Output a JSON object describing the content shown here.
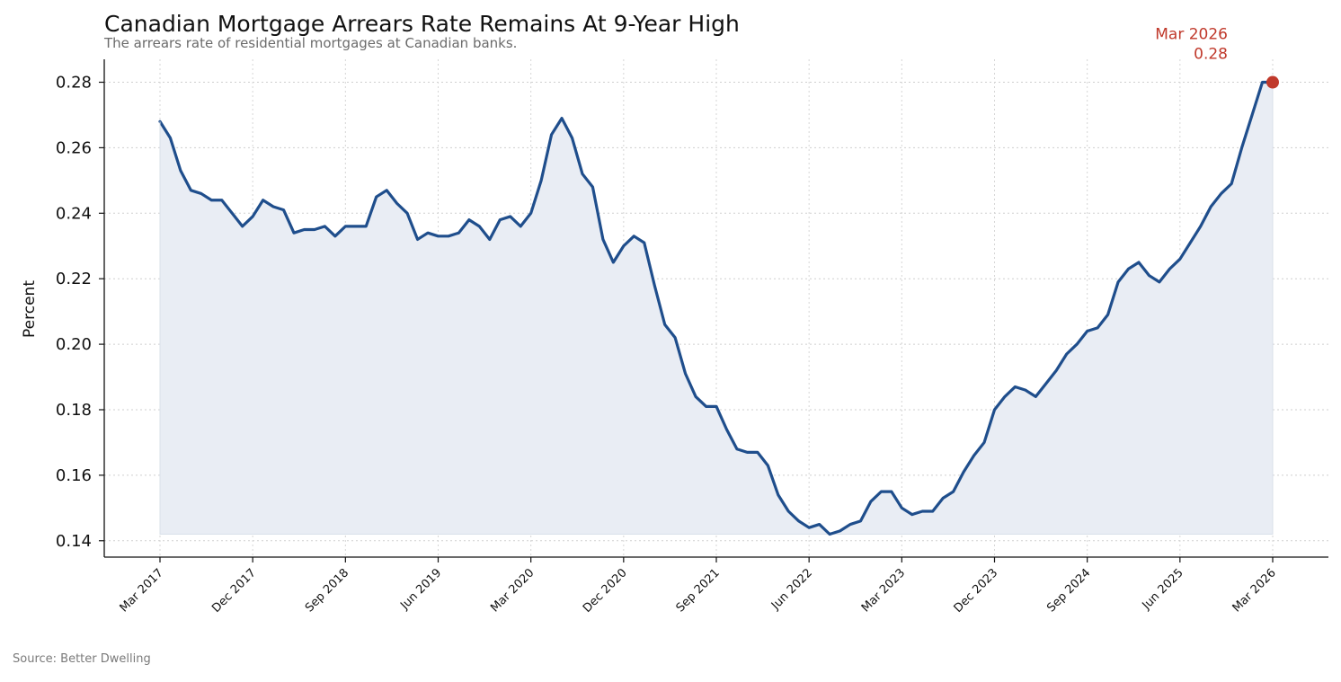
{
  "chart_data": {
    "type": "area",
    "title": "Canadian Mortgage Arrears Rate Remains At 9-Year High",
    "subtitle": "The arrears rate of residential mortgages at Canadian banks.",
    "xlabel": "",
    "ylabel": "Percent",
    "source": "Source: Better Dwelling",
    "ylim": [
      0.135,
      0.287
    ],
    "yticks": [
      0.14,
      0.16,
      0.18,
      0.2,
      0.22,
      0.24,
      0.26,
      0.28
    ],
    "ytick_labels": [
      "0.14",
      "0.16",
      "0.18",
      "0.20",
      "0.22",
      "0.24",
      "0.26",
      "0.28"
    ],
    "xticks": [
      "Mar 2017",
      "Dec 2017",
      "Sep 2018",
      "Jun 2019",
      "Mar 2020",
      "Dec 2020",
      "Sep 2021",
      "Jun 2022",
      "Mar 2023",
      "Dec 2023",
      "Sep 2024",
      "Jun 2025",
      "Mar 2026"
    ],
    "grid": true,
    "colors": {
      "line": "#1f4e8c",
      "fill": "#e9edf4",
      "highlight": "#c0392b"
    },
    "x_start": "2017-03",
    "x_frequency": "monthly",
    "series": [
      {
        "values": [
          0.268,
          0.263,
          0.253,
          0.247,
          0.246,
          0.244,
          0.244,
          0.24,
          0.236,
          0.239,
          0.244,
          0.242,
          0.241,
          0.234,
          0.235,
          0.235,
          0.236,
          0.233,
          0.236,
          0.236,
          0.236,
          0.245,
          0.247,
          0.243,
          0.24,
          0.232,
          0.234,
          0.233,
          0.233,
          0.234,
          0.238,
          0.236,
          0.232,
          0.238,
          0.239,
          0.236,
          0.24,
          0.25,
          0.264,
          0.269,
          0.263,
          0.252,
          0.248,
          0.232,
          0.225,
          0.23,
          0.233,
          0.231,
          0.218,
          0.206,
          0.202,
          0.191,
          0.184,
          0.181,
          0.181,
          0.174,
          0.168,
          0.167,
          0.167,
          0.163,
          0.154,
          0.149,
          0.146,
          0.144,
          0.145,
          0.142,
          0.143,
          0.145,
          0.146,
          0.152,
          0.155,
          0.155,
          0.15,
          0.148,
          0.149,
          0.149,
          0.153,
          0.155,
          0.161,
          0.166,
          0.17,
          0.18,
          0.184,
          0.187,
          0.186,
          0.184,
          0.188,
          0.192,
          0.197,
          0.2,
          0.204,
          0.205,
          0.209,
          0.219,
          0.223,
          0.225,
          0.221,
          0.219,
          0.223,
          0.226,
          0.231,
          0.236,
          0.242,
          0.246,
          0.249,
          0.26,
          0.27,
          0.28,
          0.28
        ]
      }
    ],
    "annotation": {
      "label": "Mar 2026",
      "value": "0.28"
    }
  }
}
